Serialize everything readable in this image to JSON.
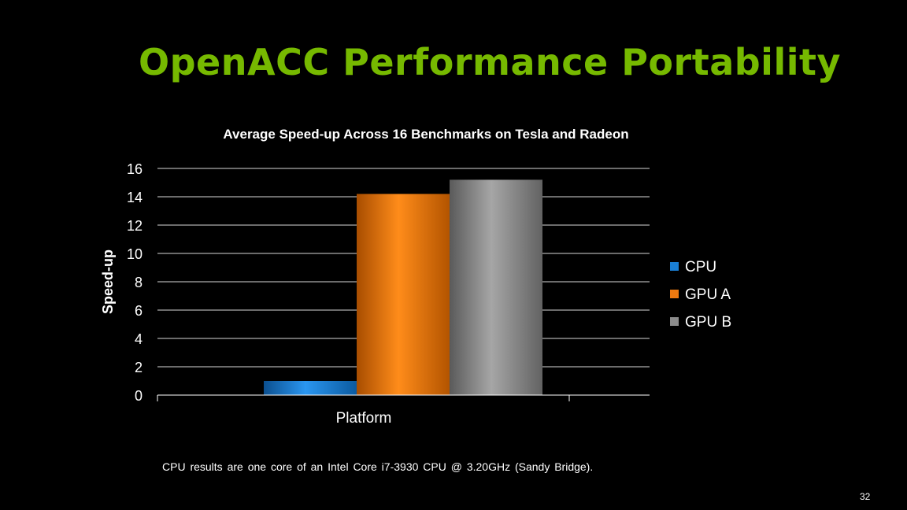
{
  "slide": {
    "title": "OpenACC Performance Portability",
    "footnote": "CPU results are one core of an Intel Core i7-3930 CPU @ 3.20GHz (Sandy Bridge).",
    "page_number": "32",
    "title_color": "#76b900",
    "background_color": "#000000"
  },
  "chart_data": {
    "type": "bar",
    "title": "Average Speed-up Across 16 Benchmarks on Tesla and Radeon",
    "xlabel": "Platform",
    "ylabel": "Speed-up",
    "categories": [
      ""
    ],
    "ylim": [
      0,
      16
    ],
    "yticks": [
      "0",
      "2",
      "4",
      "6",
      "8",
      "10",
      "12",
      "14",
      "16"
    ],
    "grid": true,
    "legend_position": "right",
    "series": [
      {
        "name": "CPU",
        "values": [
          1.0
        ],
        "color": "#1a7fd4"
      },
      {
        "name": "GPU A",
        "values": [
          14.2
        ],
        "color": "#f07a10"
      },
      {
        "name": "GPU B",
        "values": [
          15.2
        ],
        "color": "#8c8c8c"
      }
    ]
  }
}
